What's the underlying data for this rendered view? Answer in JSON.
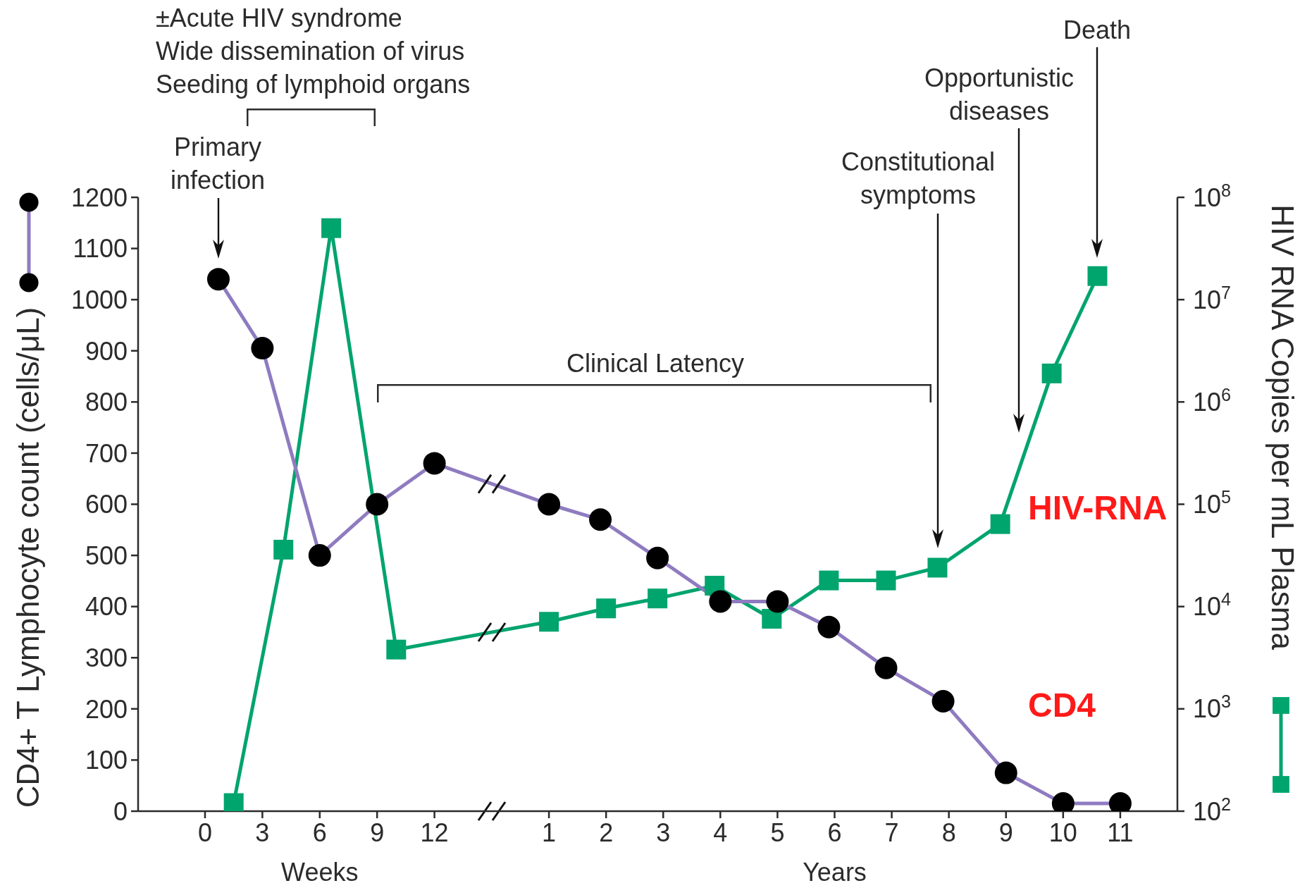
{
  "chart_data": [
    {
      "type": "line",
      "xlabel": "Weeks",
      "ylabel": "CD4+ T Lymphocyte count (cells/μL)",
      "xlim": [
        -3.5,
        15
      ],
      "xticks": [
        0,
        3,
        6,
        9,
        12
      ],
      "ylim": [
        0,
        1200
      ],
      "yticks": [
        0,
        100,
        200,
        300,
        400,
        500,
        600,
        700,
        800,
        900,
        1000,
        1100,
        1200
      ],
      "y2lim": [
        100,
        100000000
      ],
      "log": "y2",
      "series": [
        {
          "axis": "y2",
          "color": "#00a46d",
          "marker": "square",
          "x": [
            1.5,
            4.1,
            6.6,
            10
          ],
          "values": [
            120,
            36000,
            50000000,
            3800
          ]
        },
        {
          "color": "#8f7bc0",
          "colors": [
            "#000000",
            "#000000",
            "#000000",
            "#000000",
            "#000000"
          ],
          "marker": "circle",
          "x": [
            0.7,
            3,
            6,
            9,
            12
          ],
          "values": [
            1040,
            905,
            500,
            600,
            680
          ]
        }
      ],
      "annotations": [
        "±Acute HIV syndrome\nWide dissemination of virus\nSeeding of lymphoid organs",
        "Primary\ninfection"
      ]
    },
    {
      "type": "line",
      "xlabel": "Years",
      "y2label": "HIV RNA Copies per mL Plasma",
      "xlim": [
        0,
        12
      ],
      "xticks": [
        1,
        2,
        3,
        4,
        5,
        6,
        7,
        8,
        9,
        10,
        11
      ],
      "ylim": [
        0,
        1200
      ],
      "y2lim": [
        100,
        100000000
      ],
      "y2ticks": [
        {
          "value": 100,
          "label": "10$^{2}$"
        },
        {
          "value": 1000,
          "label": "10$^{3}$"
        },
        {
          "value": 10000,
          "label": "10$^{4}$"
        },
        {
          "value": 100000,
          "label": "10$^{5}$"
        },
        {
          "value": 1000000,
          "label": "10$^{6}$"
        },
        {
          "value": 10000000,
          "label": "10$^{7}$"
        },
        {
          "value": 100000000,
          "label": "10$^{8}$"
        }
      ],
      "log": "y2",
      "series": [
        {
          "name": "HIV-RNA",
          "axis": "y2",
          "color": "#00a46d",
          "marker": "square",
          "x": [
            1,
            2,
            2.9,
            3.9,
            4.9,
            5.9,
            6.9,
            7.8,
            8.9,
            9.8,
            10.6
          ],
          "values": [
            7100,
            9600,
            12000,
            16000,
            7600,
            18000,
            18000,
            24000,
            64000,
            1900000,
            17000000
          ]
        },
        {
          "name": "CD4",
          "color": "#8f7bc0",
          "colors": [
            "#000000",
            "#000000",
            "#000000",
            "#000000",
            "#000000",
            "#000000",
            "#000000",
            "#000000",
            "#000000",
            "#000000",
            "#000000"
          ],
          "marker": "circle",
          "x": [
            1,
            1.9,
            2.9,
            4,
            5,
            5.9,
            6.9,
            7.9,
            9,
            10,
            11
          ],
          "values": [
            600,
            570,
            495,
            410,
            410,
            360,
            280,
            215,
            75,
            15,
            15
          ]
        }
      ],
      "annotations": [
        "Clinical Latency",
        "Constitutional\nsymptoms",
        "Opportunistic\ndiseases",
        "Death"
      ]
    }
  ]
}
